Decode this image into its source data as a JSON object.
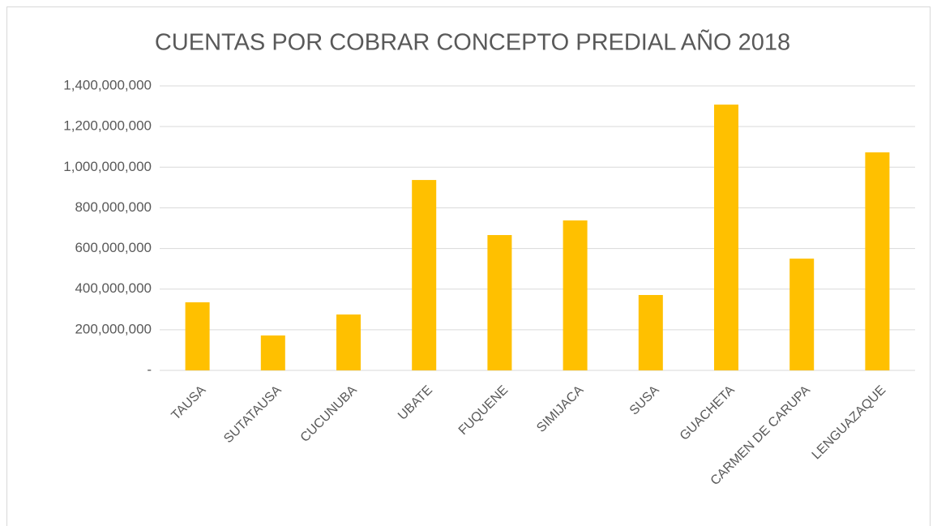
{
  "chart_data": {
    "type": "bar",
    "title": "CUENTAS POR COBRAR CONCEPTO PREDIAL AÑO 2018",
    "categories": [
      "TAUSA",
      "SUTATAUSA",
      "CUCUNUBA",
      "UBATE",
      "FUQUENE",
      "SIMIJACA",
      "SUSA",
      "GUACHETA",
      "CARMEN DE CARUPA",
      "LENGUAZAQUE"
    ],
    "values": [
      335000000,
      172000000,
      275000000,
      937000000,
      666000000,
      738000000,
      371000000,
      1308000000,
      550000000,
      1073000000
    ],
    "color": "#ffc000",
    "ylim": [
      0,
      1400000000
    ],
    "yticks": [
      {
        "value": 0,
        "label": "-"
      },
      {
        "value": 200000000,
        "label": "200,000,000"
      },
      {
        "value": 400000000,
        "label": "400,000,000"
      },
      {
        "value": 600000000,
        "label": "600,000,000"
      },
      {
        "value": 800000000,
        "label": "800,000,000"
      },
      {
        "value": 1000000000,
        "label": "1,000,000,000"
      },
      {
        "value": 1200000000,
        "label": "1,200,000,000"
      },
      {
        "value": 1400000000,
        "label": "1,400,000,000"
      }
    ],
    "grid": true
  }
}
